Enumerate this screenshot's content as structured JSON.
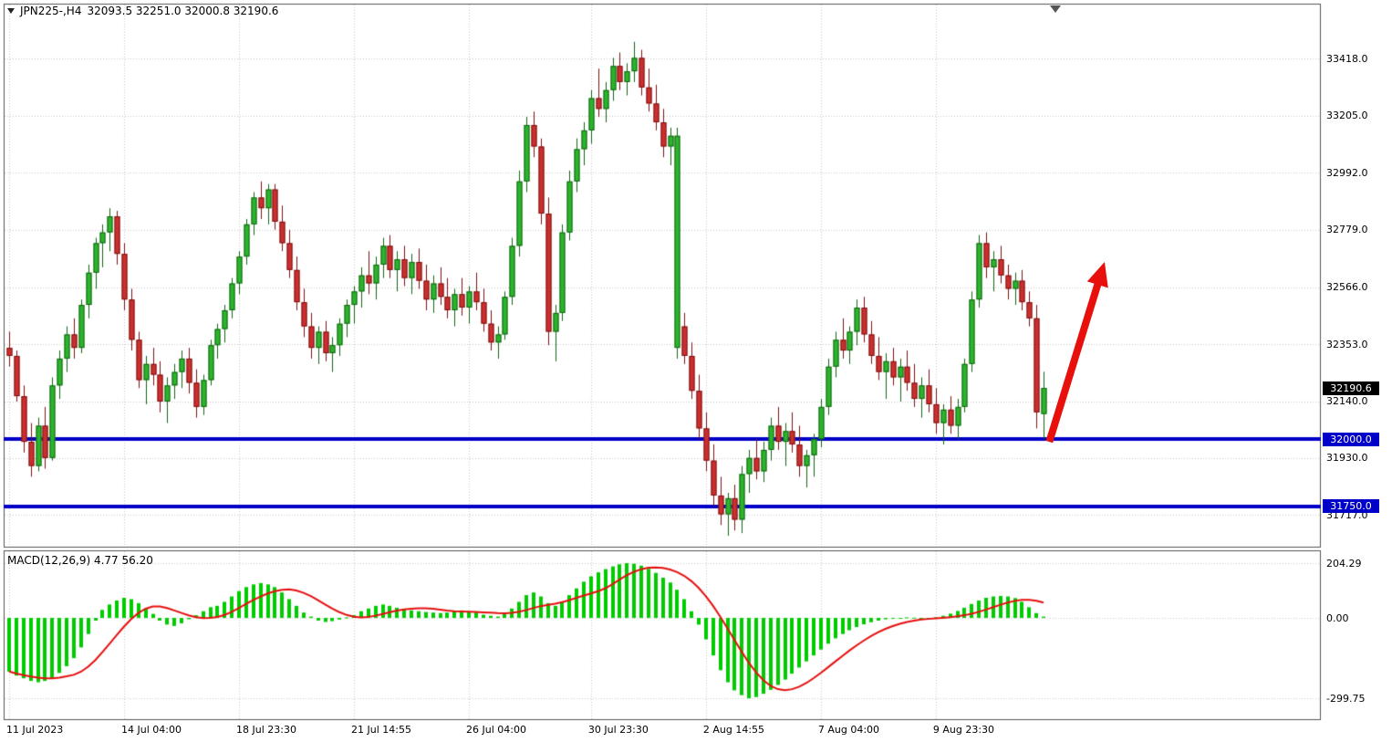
{
  "title": {
    "symbol_timeframe": "JPN225-,H4",
    "ohlc_text": "32093.5 32251.0 32000.8 32190.6"
  },
  "colors": {
    "background": "#ffffff",
    "border": "#555555",
    "grid": "#c9c9c9",
    "text": "#000000",
    "up": "#2bb52b",
    "up_border": "#146314",
    "down": "#cc2f2f",
    "down_border": "#7c1212",
    "support_line": "#0000c8",
    "current_price_bg": "#000000",
    "badge_text": "#ffffff",
    "macd_histogram": "#00cc00",
    "macd_signal": "#e60f0f",
    "arrow": "#e8100c"
  },
  "chart_data": {
    "type": "candlestick",
    "symbol": "JPN225-",
    "timeframe": "H4",
    "current": {
      "open": 32093.5,
      "high": 32251.0,
      "low": 32000.8,
      "close": 32190.6
    },
    "price_axis": {
      "tick_labels": [
        "33418.0",
        "33205.0",
        "32992.0",
        "32779.0",
        "32566.0",
        "32353.0",
        "32140.0",
        "31930.0",
        "31717.0"
      ],
      "ylim": [
        31596,
        33622
      ],
      "current_price_label": "32190.6"
    },
    "support_lines": [
      {
        "label": "32000.0",
        "price": 32000.0
      },
      {
        "label": "31750.0",
        "price": 31750.0
      }
    ],
    "time_axis": {
      "labels": [
        {
          "text": "11 Jul 2023",
          "index": 0
        },
        {
          "text": "14 Jul 04:00",
          "index": 16
        },
        {
          "text": "18 Jul 23:30",
          "index": 32
        },
        {
          "text": "21 Jul 14:55",
          "index": 48
        },
        {
          "text": "26 Jul 04:00",
          "index": 64
        },
        {
          "text": "30 Jul 23:30",
          "index": 81
        },
        {
          "text": "2 Aug 14:55",
          "index": 97
        },
        {
          "text": "7 Aug 04:00",
          "index": 113
        },
        {
          "text": "9 Aug 23:30",
          "index": 129
        }
      ]
    },
    "candles": [
      [
        32340,
        32400,
        32270,
        32310
      ],
      [
        32310,
        32330,
        32140,
        32160
      ],
      [
        32160,
        32200,
        31950,
        31990
      ],
      [
        31990,
        32060,
        31860,
        31900
      ],
      [
        31900,
        32080,
        31880,
        32050
      ],
      [
        32050,
        32120,
        31890,
        31930
      ],
      [
        31930,
        32230,
        31920,
        32200
      ],
      [
        32200,
        32330,
        32150,
        32300
      ],
      [
        32300,
        32420,
        32250,
        32390
      ],
      [
        32390,
        32450,
        32300,
        32340
      ],
      [
        32340,
        32520,
        32320,
        32500
      ],
      [
        32500,
        32650,
        32450,
        32620
      ],
      [
        32620,
        32750,
        32560,
        32730
      ],
      [
        32730,
        32800,
        32640,
        32770
      ],
      [
        32770,
        32860,
        32700,
        32830
      ],
      [
        32830,
        32850,
        32650,
        32690
      ],
      [
        32690,
        32730,
        32480,
        32520
      ],
      [
        32520,
        32560,
        32330,
        32370
      ],
      [
        32370,
        32400,
        32190,
        32220
      ],
      [
        32220,
        32310,
        32130,
        32280
      ],
      [
        32280,
        32340,
        32200,
        32240
      ],
      [
        32240,
        32290,
        32100,
        32140
      ],
      [
        32140,
        32230,
        32060,
        32200
      ],
      [
        32200,
        32280,
        32150,
        32250
      ],
      [
        32250,
        32330,
        32190,
        32300
      ],
      [
        32300,
        32340,
        32170,
        32210
      ],
      [
        32210,
        32260,
        32080,
        32120
      ],
      [
        32120,
        32240,
        32090,
        32220
      ],
      [
        32220,
        32370,
        32200,
        32350
      ],
      [
        32350,
        32430,
        32300,
        32410
      ],
      [
        32410,
        32500,
        32360,
        32480
      ],
      [
        32480,
        32600,
        32450,
        32580
      ],
      [
        32580,
        32700,
        32540,
        32680
      ],
      [
        32680,
        32820,
        32650,
        32800
      ],
      [
        32800,
        32920,
        32760,
        32900
      ],
      [
        32900,
        32960,
        32820,
        32860
      ],
      [
        32860,
        32950,
        32800,
        32930
      ],
      [
        32930,
        32950,
        32780,
        32810
      ],
      [
        32810,
        32870,
        32700,
        32730
      ],
      [
        32730,
        32780,
        32600,
        32630
      ],
      [
        32630,
        32680,
        32480,
        32510
      ],
      [
        32510,
        32560,
        32380,
        32420
      ],
      [
        32420,
        32470,
        32300,
        32340
      ],
      [
        32340,
        32420,
        32280,
        32400
      ],
      [
        32400,
        32440,
        32290,
        32320
      ],
      [
        32320,
        32380,
        32250,
        32350
      ],
      [
        32350,
        32450,
        32310,
        32430
      ],
      [
        32430,
        32520,
        32380,
        32500
      ],
      [
        32500,
        32570,
        32430,
        32550
      ],
      [
        32550,
        32640,
        32490,
        32610
      ],
      [
        32610,
        32700,
        32540,
        32580
      ],
      [
        32580,
        32680,
        32520,
        32650
      ],
      [
        32650,
        32750,
        32600,
        32720
      ],
      [
        32720,
        32760,
        32600,
        32630
      ],
      [
        32630,
        32700,
        32550,
        32670
      ],
      [
        32670,
        32720,
        32570,
        32600
      ],
      [
        32600,
        32690,
        32540,
        32660
      ],
      [
        32660,
        32710,
        32560,
        32590
      ],
      [
        32590,
        32650,
        32480,
        32520
      ],
      [
        32520,
        32610,
        32470,
        32580
      ],
      [
        32580,
        32640,
        32500,
        32530
      ],
      [
        32530,
        32600,
        32450,
        32480
      ],
      [
        32480,
        32560,
        32420,
        32540
      ],
      [
        32540,
        32600,
        32460,
        32490
      ],
      [
        32490,
        32570,
        32430,
        32550
      ],
      [
        32550,
        32620,
        32480,
        32510
      ],
      [
        32510,
        32560,
        32400,
        32430
      ],
      [
        32430,
        32480,
        32330,
        32360
      ],
      [
        32360,
        32420,
        32300,
        32390
      ],
      [
        32390,
        32550,
        32370,
        32530
      ],
      [
        32530,
        32750,
        32500,
        32720
      ],
      [
        32720,
        33000,
        32680,
        32960
      ],
      [
        32960,
        33200,
        32920,
        33170
      ],
      [
        33170,
        33220,
        33050,
        33090
      ],
      [
        33090,
        33120,
        32800,
        32840
      ],
      [
        32840,
        32900,
        32350,
        32400
      ],
      [
        32400,
        32500,
        32290,
        32470
      ],
      [
        32470,
        32800,
        32440,
        32770
      ],
      [
        32770,
        33000,
        32740,
        32960
      ],
      [
        32960,
        33120,
        32920,
        33080
      ],
      [
        33080,
        33180,
        33020,
        33150
      ],
      [
        33150,
        33300,
        33100,
        33270
      ],
      [
        33270,
        33380,
        33200,
        33230
      ],
      [
        33230,
        33330,
        33180,
        33300
      ],
      [
        33300,
        33420,
        33260,
        33390
      ],
      [
        33390,
        33440,
        33300,
        33330
      ],
      [
        33330,
        33400,
        33280,
        33370
      ],
      [
        33370,
        33480,
        33330,
        33420
      ],
      [
        33420,
        33450,
        33280,
        33310
      ],
      [
        33310,
        33380,
        33220,
        33250
      ],
      [
        33250,
        33320,
        33150,
        33180
      ],
      [
        33180,
        33230,
        33050,
        33090
      ],
      [
        33090,
        33160,
        33020,
        33130
      ],
      [
        32340,
        33160,
        32300,
        33130
      ],
      [
        32420,
        32470,
        32280,
        32310
      ],
      [
        32310,
        32360,
        32150,
        32180
      ],
      [
        32180,
        32240,
        32000,
        32040
      ],
      [
        32040,
        32100,
        31880,
        31920
      ],
      [
        31920,
        31980,
        31750,
        31790
      ],
      [
        31790,
        31860,
        31680,
        31720
      ],
      [
        31720,
        31800,
        31640,
        31780
      ],
      [
        31780,
        31830,
        31660,
        31700
      ],
      [
        31700,
        31900,
        31650,
        31870
      ],
      [
        31870,
        31960,
        31800,
        31930
      ],
      [
        31930,
        32000,
        31850,
        31880
      ],
      [
        31880,
        31990,
        31840,
        31960
      ],
      [
        31960,
        32080,
        31920,
        32050
      ],
      [
        32050,
        32120,
        31960,
        31990
      ],
      [
        31990,
        32060,
        31900,
        32030
      ],
      [
        32030,
        32100,
        31950,
        31980
      ],
      [
        31980,
        32050,
        31860,
        31900
      ],
      [
        31900,
        31960,
        31820,
        31940
      ],
      [
        31940,
        32020,
        31860,
        32000
      ],
      [
        32000,
        32150,
        31970,
        32120
      ],
      [
        32120,
        32300,
        32090,
        32270
      ],
      [
        32270,
        32400,
        32230,
        32370
      ],
      [
        32370,
        32450,
        32300,
        32330
      ],
      [
        32330,
        32420,
        32280,
        32400
      ],
      [
        32400,
        32520,
        32350,
        32490
      ],
      [
        32490,
        32530,
        32360,
        32390
      ],
      [
        32390,
        32440,
        32280,
        32310
      ],
      [
        32310,
        32380,
        32220,
        32250
      ],
      [
        32250,
        32320,
        32150,
        32290
      ],
      [
        32290,
        32340,
        32200,
        32230
      ],
      [
        32230,
        32300,
        32140,
        32270
      ],
      [
        32270,
        32330,
        32180,
        32210
      ],
      [
        32210,
        32280,
        32120,
        32150
      ],
      [
        32150,
        32230,
        32080,
        32200
      ],
      [
        32200,
        32260,
        32100,
        32130
      ],
      [
        32130,
        32190,
        32020,
        32060
      ],
      [
        32060,
        32130,
        31980,
        32110
      ],
      [
        32110,
        32160,
        32020,
        32050
      ],
      [
        32050,
        32150,
        32000,
        32120
      ],
      [
        32120,
        32300,
        32100,
        32280
      ],
      [
        32280,
        32550,
        32250,
        32520
      ],
      [
        32520,
        32760,
        32490,
        32730
      ],
      [
        32730,
        32770,
        32600,
        32640
      ],
      [
        32640,
        32700,
        32550,
        32670
      ],
      [
        32670,
        32720,
        32580,
        32610
      ],
      [
        32610,
        32650,
        32520,
        32560
      ],
      [
        32560,
        32620,
        32500,
        32590
      ],
      [
        32590,
        32630,
        32480,
        32510
      ],
      [
        32510,
        32550,
        32420,
        32450
      ],
      [
        32450,
        32500,
        32040,
        32100
      ],
      [
        32093.5,
        32251.0,
        32000.8,
        32190.6
      ]
    ],
    "macd": {
      "indicator_label": "MACD(12,26,9) 4.77 56.20",
      "tick_labels": [
        "204.29",
        "0.00",
        "-299.75"
      ],
      "ylim": [
        -381,
        252
      ],
      "signal_period": 9,
      "histogram": [
        -200,
        -215,
        -225,
        -235,
        -240,
        -235,
        -225,
        -205,
        -180,
        -150,
        -110,
        -60,
        -10,
        30,
        50,
        65,
        75,
        70,
        55,
        35,
        15,
        -10,
        -25,
        -30,
        -20,
        -5,
        10,
        25,
        40,
        45,
        60,
        80,
        100,
        115,
        125,
        130,
        125,
        115,
        95,
        70,
        45,
        20,
        5,
        -10,
        -15,
        -12,
        -6,
        2,
        10,
        25,
        35,
        45,
        50,
        45,
        38,
        32,
        28,
        25,
        22,
        20,
        18,
        20,
        24,
        28,
        25,
        20,
        12,
        8,
        5,
        15,
        35,
        60,
        85,
        95,
        80,
        55,
        45,
        60,
        85,
        110,
        135,
        155,
        170,
        182,
        192,
        200,
        204.29,
        202,
        195,
        183,
        168,
        150,
        132,
        105,
        70,
        25,
        -25,
        -80,
        -140,
        -195,
        -240,
        -270,
        -288,
        -299.75,
        -295,
        -283,
        -268,
        -250,
        -230,
        -208,
        -185,
        -162,
        -140,
        -118,
        -96,
        -76,
        -60,
        -46,
        -34,
        -24,
        -16,
        -10,
        -5,
        -2,
        0,
        2,
        1,
        -1,
        -2,
        2,
        8,
        16,
        26,
        38,
        52,
        65,
        75,
        80,
        82,
        80,
        74,
        60,
        40,
        18,
        4.77
      ]
    },
    "annotations": {
      "arrow": {
        "from": {
          "index": 144.8,
          "price": 31990
        },
        "to": {
          "index": 152.5,
          "price": 32660
        }
      }
    }
  }
}
